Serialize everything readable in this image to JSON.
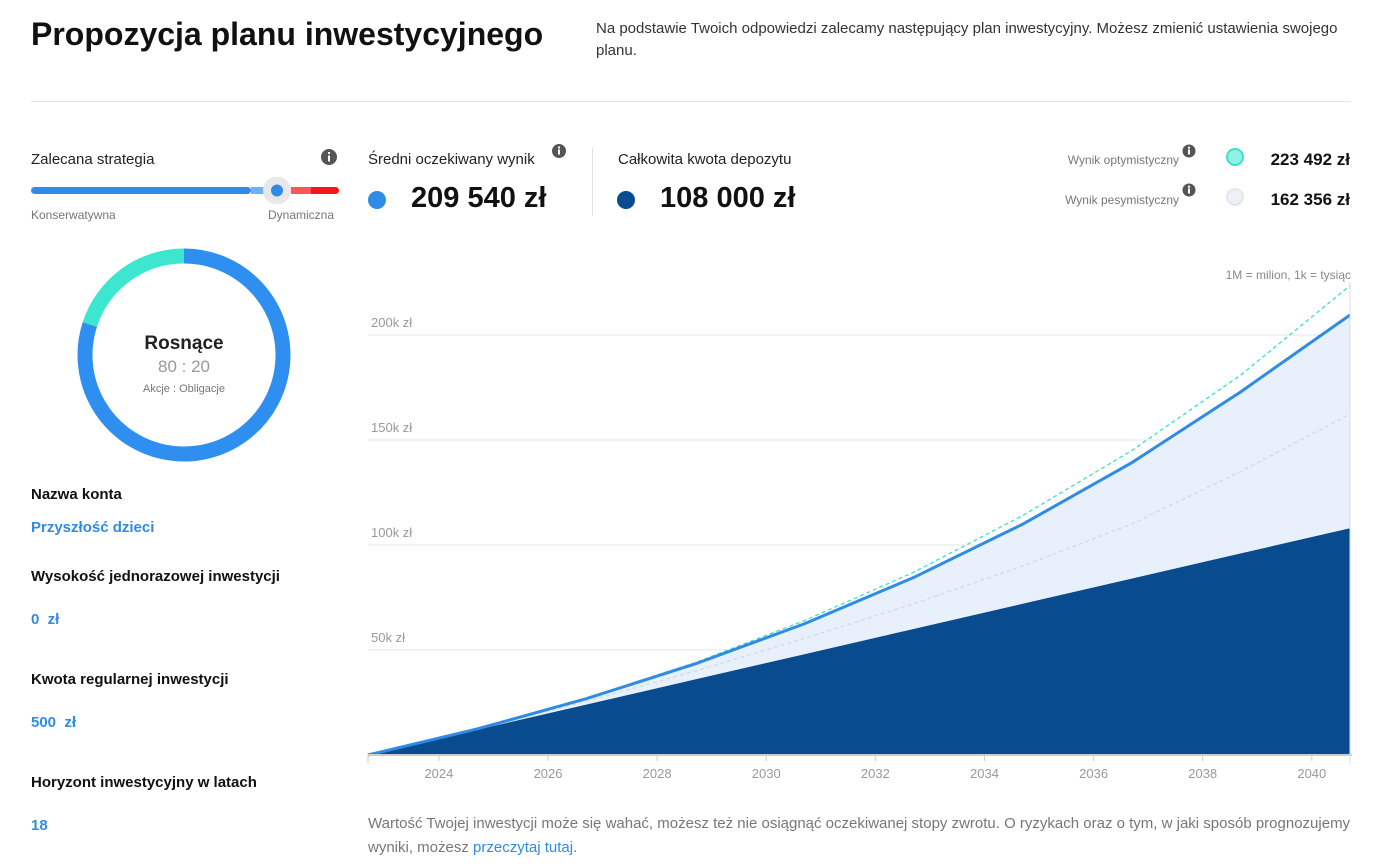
{
  "header": {
    "title": "Propozycja planu inwestycyjnego",
    "description": "Na podstawie Twoich odpowiedzi zalecamy następujący plan inwestycyjny. Możesz zmienić ustawienia swojego planu."
  },
  "strategy": {
    "label": "Zalecana strategia",
    "min_label": "Konserwatywna",
    "max_label": "Dynamiczna"
  },
  "donut": {
    "title": "Rosnące",
    "ratio": "80 : 20",
    "subtitle": "Akcje : Obligacje",
    "values": [
      80,
      20
    ],
    "colors": [
      "#2f8ff0",
      "#3de6cf"
    ]
  },
  "fields": [
    {
      "label": "Nazwa konta",
      "value": "Przyszłość dzieci"
    },
    {
      "label": "Wysokość jednorazowej inwestycji",
      "value": "0  zł"
    },
    {
      "label": "Kwota regularnej inwestycji",
      "value": "500  zł"
    },
    {
      "label": "Horyzont inwestycyjny w latach",
      "value": "18"
    }
  ],
  "summary": {
    "mean": "209 540 zł",
    "deposit": "108 000 zł",
    "optimistic": "223 492 zł",
    "pessimistic": "162 356 zł"
  },
  "units_note": "1M = milion, 1k = tysiąc",
  "footer": {
    "text_before": "Wartość Twojej inwestycji może się wahać, możesz też nie osiągnąć oczekiwanej stopy zwrotu. O ryzykach oraz o tym, w jaki sposób prognozujemy wyniki, możesz ",
    "link": "przeczytaj tutaj",
    "text_after": "."
  },
  "chart_data": {
    "type": "area",
    "x": [
      2022.7,
      2024.7,
      2026.7,
      2028.7,
      2030.7,
      2032.7,
      2034.7,
      2036.7,
      2038.7,
      2040.7
    ],
    "series": [
      {
        "name": "Średni oczekiwany wynik",
        "color": "#2f8be6",
        "fill": "#e8f0fb",
        "values": [
          0,
          12400,
          26800,
          43400,
          62500,
          84500,
          109900,
          139200,
          173000,
          209540
        ]
      },
      {
        "name": "Całkowita kwota depozytu",
        "color": "#084b8e",
        "fill": "#084b8e",
        "values": [
          0,
          12000,
          24000,
          36000,
          48000,
          60000,
          72000,
          84000,
          96000,
          108000
        ]
      },
      {
        "name": "Wynik optymistyczny",
        "color": "#3ee0c8",
        "dashed": true,
        "values": [
          0,
          12500,
          27000,
          44000,
          64000,
          87000,
          114000,
          145000,
          181000,
          223492
        ]
      },
      {
        "name": "Wynik pesymistyczny",
        "color": "#d3dbe3",
        "dashed": true,
        "values": [
          0,
          12200,
          25500,
          40000,
          55500,
          72000,
          90000,
          110000,
          135000,
          162356
        ]
      }
    ],
    "xlim": [
      2022.7,
      2040.7
    ],
    "xticks": [
      2024,
      2026,
      2028,
      2030,
      2032,
      2034,
      2036,
      2038,
      2040
    ],
    "ylim": [
      0,
      230000
    ],
    "yticks": [
      {
        "value": 50000,
        "label": "50k zł"
      },
      {
        "value": 100000,
        "label": "100k zł"
      },
      {
        "value": 150000,
        "label": "150k zł"
      },
      {
        "value": 200000,
        "label": "200k zł"
      }
    ],
    "grid": true
  }
}
